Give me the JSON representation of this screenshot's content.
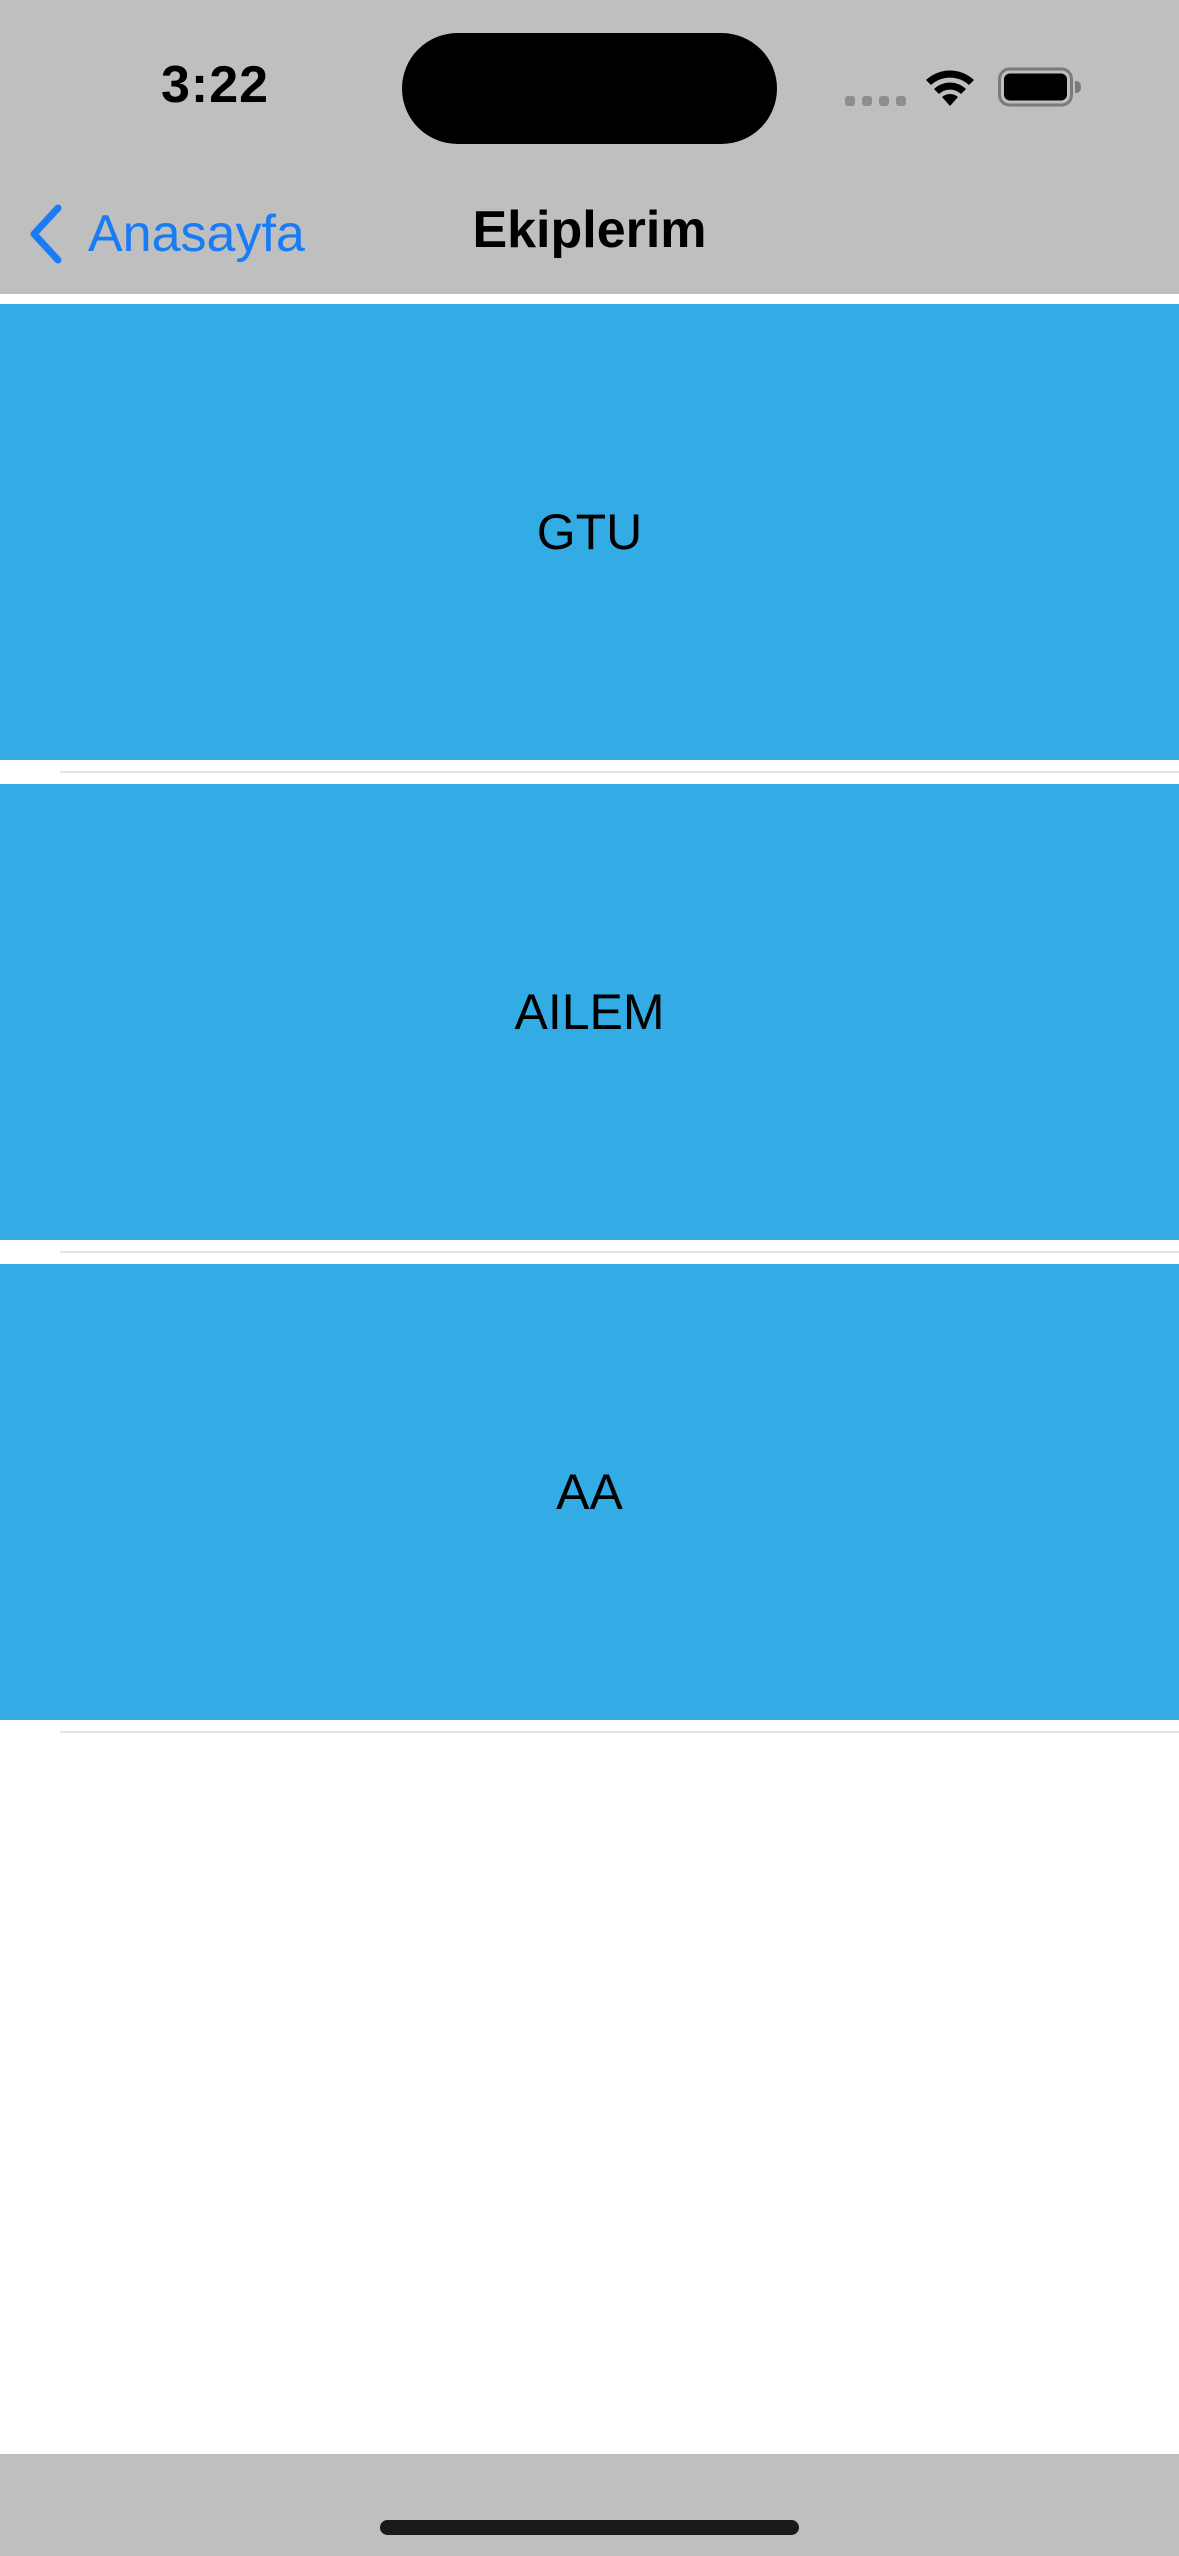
{
  "status_bar": {
    "time": "3:22",
    "icons": [
      "signal-icon",
      "wifi-icon",
      "battery-icon"
    ]
  },
  "nav": {
    "back_label": "Anasayfa",
    "back_icon": "chevron-left-icon",
    "title": "Ekiplerim"
  },
  "teams": [
    {
      "name": "GTU"
    },
    {
      "name": "AILEM"
    },
    {
      "name": "AA"
    }
  ],
  "colors": {
    "card": "#33ace6",
    "accent": "#1a7cf5",
    "bars": "#bfbfbf"
  }
}
